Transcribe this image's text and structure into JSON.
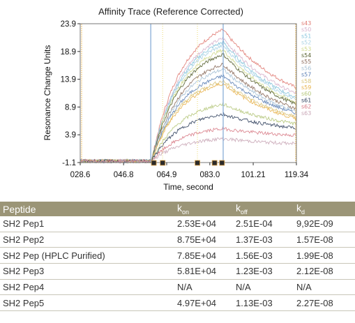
{
  "chart_data": {
    "type": "line",
    "title": "Affinity Trace (Reference Corrected)",
    "xlabel": "Time, second",
    "ylabel": "Resonance Change Units",
    "x_ticks": [
      "028.6",
      "046.8",
      "064.9",
      "083.0",
      "101.21",
      "119.34"
    ],
    "x_tick_values": [
      28.6,
      46.8,
      64.9,
      83.0,
      101.21,
      119.34
    ],
    "y_ticks": [
      "-1.1",
      "3.9",
      "8.9",
      "13.9",
      "18.9",
      "23.9"
    ],
    "y_tick_values": [
      -1.1,
      3.9,
      8.9,
      13.9,
      18.9,
      23.9
    ],
    "xlim": [
      28.6,
      119.34
    ],
    "ylim": [
      -1.1,
      23.9
    ],
    "association_start": 58.5,
    "dissociation_start": 88.6,
    "markers": [
      59.5,
      63.2,
      77.8,
      85.0,
      88.1
    ],
    "series": [
      {
        "name": "s43",
        "color": "#e07a72",
        "association_end": 22.8,
        "dissociation_end": 12.4
      },
      {
        "name": "s50",
        "color": "#d7b3cc",
        "association_end": 21.3,
        "dissociation_end": 11.3
      },
      {
        "name": "s51",
        "color": "#86c4dc",
        "association_end": 20.6,
        "dissociation_end": 10.6
      },
      {
        "name": "s52",
        "color": "#a8d2e4",
        "association_end": 20.0,
        "dissociation_end": 10.2
      },
      {
        "name": "s53",
        "color": "#cfd98c",
        "association_end": 19.2,
        "dissociation_end": 9.7
      },
      {
        "name": "s54",
        "color": "#555f2e",
        "association_end": 18.4,
        "dissociation_end": 9.4
      },
      {
        "name": "s55",
        "color": "#8a6a5a",
        "association_end": 16.6,
        "dissociation_end": 8.6
      },
      {
        "name": "s56",
        "color": "#a7c2d6",
        "association_end": 15.7,
        "dissociation_end": 8.1
      },
      {
        "name": "s57",
        "color": "#5b7fb5",
        "association_end": 14.5,
        "dissociation_end": 7.8
      },
      {
        "name": "s58",
        "color": "#d9c47a",
        "association_end": 13.6,
        "dissociation_end": 7.1
      },
      {
        "name": "s59",
        "color": "#e8b34c",
        "association_end": 13.1,
        "dissociation_end": 6.8
      },
      {
        "name": "s60",
        "color": "#b5c77b",
        "association_end": 9.4,
        "dissociation_end": 5.9
      },
      {
        "name": "s61",
        "color": "#2f3f5c",
        "association_end": 7.6,
        "dissociation_end": 5.1
      },
      {
        "name": "s62",
        "color": "#d87b86",
        "association_end": 5.0,
        "dissociation_end": 3.8
      },
      {
        "name": "s63",
        "color": "#c9a6b6",
        "association_end": 3.2,
        "dissociation_end": 2.3
      }
    ],
    "grid": false,
    "legend_position": "right"
  },
  "table": {
    "headers": [
      "Peptide",
      "k",
      "k",
      "k"
    ],
    "header_subs": [
      "",
      "on",
      "off",
      "d"
    ],
    "rows": [
      [
        "SH2 Pep1",
        "2.53E+04",
        "2.51E-04",
        "9,92E-09"
      ],
      [
        "SH2 Pep2",
        "8.75E+04",
        "1.37E-03",
        "1.57E-08"
      ],
      [
        "SH2 Pep (HPLC Purified)",
        "7.85E+04",
        "1.56E-03",
        "1.99E-08"
      ],
      [
        "SH2 Pep3",
        "5.81E+04",
        "1.23E-03",
        "2.12E-08"
      ],
      [
        "SH2 Pep4",
        "N/A",
        "N/A",
        "N/A"
      ],
      [
        "SH2 Pep5",
        "4.97E+04",
        "1.13E-03",
        "2.27E-08"
      ]
    ]
  }
}
